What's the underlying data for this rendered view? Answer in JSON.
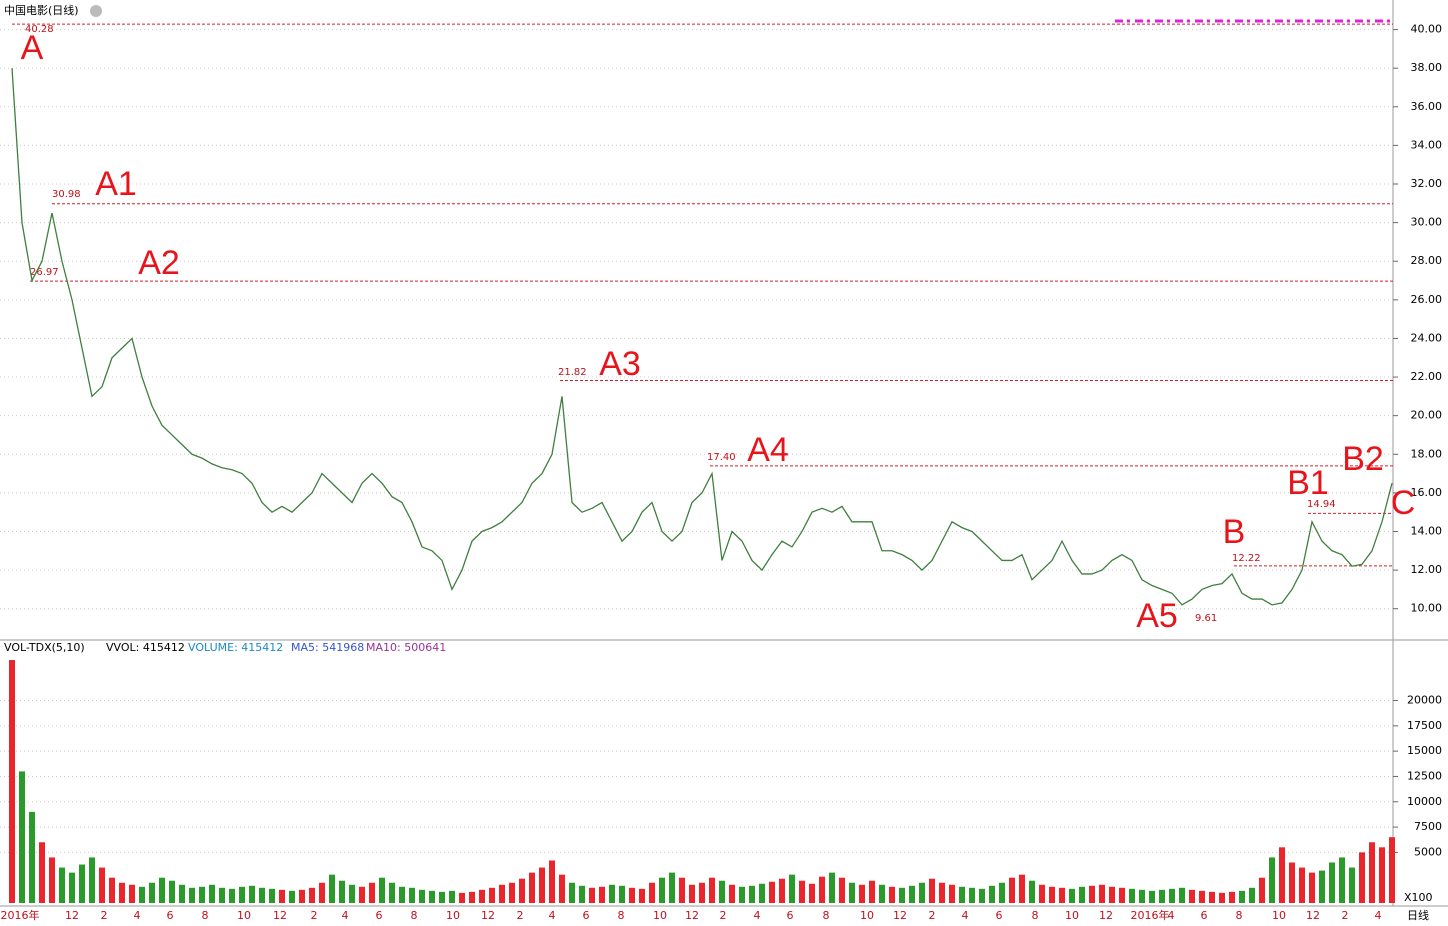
{
  "title": "中国电影(日线)",
  "chart_data": [
    {
      "type": "line",
      "name": "price",
      "values": [
        38,
        30,
        27,
        28,
        30.5,
        28,
        26,
        23.5,
        21,
        21.5,
        23,
        23.5,
        24,
        22,
        20.5,
        19.5,
        19,
        18.5,
        18,
        17.8,
        17.5,
        17.3,
        17.2,
        17,
        16.5,
        15.5,
        15,
        15.3,
        15,
        15.5,
        16,
        17,
        16.5,
        16,
        15.5,
        16.5,
        17,
        16.5,
        15.8,
        15.5,
        14.5,
        13.2,
        13,
        12.5,
        11,
        12,
        13.5,
        14,
        14.2,
        14.5,
        15,
        15.5,
        16.5,
        17,
        18,
        21,
        15.5,
        15,
        15.2,
        15.5,
        14.5,
        13.5,
        14,
        15,
        15.5,
        14,
        13.5,
        14,
        15.5,
        16,
        17,
        12.5,
        14,
        13.5,
        12.5,
        12,
        12.8,
        13.5,
        13.2,
        14,
        15,
        15.2,
        15,
        15.3,
        14.5,
        14.5,
        14.5,
        13,
        13,
        12.8,
        12.5,
        12,
        12.5,
        13.5,
        14.5,
        14.2,
        14,
        13.5,
        13,
        12.5,
        12.5,
        12.8,
        11.5,
        12,
        12.5,
        13.5,
        12.5,
        11.8,
        11.8,
        12,
        12.5,
        12.8,
        12.5,
        11.5,
        11.2,
        11,
        10.8,
        10.2,
        10.5,
        11,
        11.2,
        11.3,
        11.8,
        10.8,
        10.5,
        10.5,
        10.2,
        10.3,
        11,
        12,
        14.5,
        13.5,
        13,
        12.8,
        12.2,
        12.3,
        13,
        14.5,
        16.5
      ],
      "color": "#3f7f3f",
      "ylim": [
        9.0,
        40.6
      ],
      "yticks": [
        {
          "value": 10,
          "label": "10.00"
        },
        {
          "value": 12,
          "label": "12.00"
        },
        {
          "value": 14,
          "label": "14.00"
        },
        {
          "value": 16,
          "label": "16.00"
        },
        {
          "value": 18,
          "label": "18.00"
        },
        {
          "value": 20,
          "label": "20.00"
        },
        {
          "value": 22,
          "label": "22.00"
        },
        {
          "value": 24,
          "label": "24.00"
        },
        {
          "value": 26,
          "label": "26.00"
        },
        {
          "value": 28,
          "label": "28.00"
        },
        {
          "value": 30,
          "label": "30.00"
        },
        {
          "value": 32,
          "label": "32.00"
        },
        {
          "value": 34,
          "label": "34.00"
        },
        {
          "value": 36,
          "label": "36.00"
        },
        {
          "value": 38,
          "label": "38.00"
        },
        {
          "value": 40,
          "label": "40.00"
        }
      ],
      "grid": true,
      "levels": [
        {
          "value": 40.28,
          "label": "40.28"
        },
        {
          "value": 30.98,
          "label": "30.98"
        },
        {
          "value": 26.97,
          "label": "26.97"
        },
        {
          "value": 21.82,
          "label": "21.82"
        },
        {
          "value": 17.4,
          "label": "17.40"
        },
        {
          "value": 14.94,
          "label": "14.94"
        },
        {
          "value": 12.22,
          "label": "12.22"
        },
        {
          "value": 9.61,
          "label": "9.61"
        }
      ],
      "annotations": [
        "A",
        "A1",
        "A2",
        "A3",
        "A4",
        "A5",
        "B",
        "B1",
        "B2",
        "C"
      ]
    },
    {
      "type": "bar",
      "name": "volume",
      "header": [
        "VOL-TDX(5,10)",
        "VVOL: 415412",
        "VOLUME: 415412",
        "MA5: 541968",
        "MA10: 500641"
      ],
      "values": [
        24000,
        13000,
        9000,
        6000,
        4500,
        3500,
        3000,
        3800,
        4500,
        3500,
        2500,
        2000,
        1800,
        1600,
        2000,
        2500,
        2200,
        1800,
        1500,
        1600,
        1800,
        1500,
        1400,
        1600,
        1700,
        1500,
        1400,
        1300,
        1200,
        1300,
        1500,
        2000,
        2800,
        2200,
        1800,
        1600,
        2000,
        2500,
        2000,
        1600,
        1500,
        1300,
        1200,
        1100,
        1200,
        1000,
        1100,
        1300,
        1500,
        1800,
        2000,
        2400,
        3000,
        3500,
        4200,
        2800,
        2000,
        1700,
        1500,
        1600,
        1800,
        1700,
        1500,
        1400,
        2000,
        2500,
        3000,
        2500,
        1800,
        2000,
        2500,
        2200,
        1800,
        1600,
        1700,
        1900,
        2100,
        2400,
        2800,
        2200,
        1900,
        2600,
        3000,
        2500,
        2000,
        1800,
        2200,
        1800,
        1600,
        1500,
        1700,
        2000,
        2400,
        2000,
        1800,
        1600,
        1500,
        1400,
        1700,
        2000,
        2500,
        2800,
        2200,
        1800,
        1600,
        1500,
        1400,
        1600,
        1700,
        1800,
        1600,
        1500,
        1400,
        1300,
        1200,
        1300,
        1400,
        1500,
        1300,
        1200,
        1100,
        1000,
        1100,
        1200,
        1500,
        2500,
        4500,
        5500,
        4000,
        3500,
        3000,
        3200,
        4000,
        4500,
        3500,
        5000,
        6000,
        5500,
        6500
      ],
      "up_color": "#e8262b",
      "down_color": "#2a9a2a",
      "ylim": [
        0,
        24300
      ],
      "yticks": [
        5000,
        7500,
        10000,
        12500,
        15000,
        17500,
        20000
      ],
      "unit": "X100"
    }
  ],
  "x_labels": [
    "2016年",
    "12",
    "2",
    "4",
    "6",
    "8",
    "10",
    "12",
    "2",
    "4",
    "6",
    "8",
    "10",
    "12",
    "2",
    "4",
    "6",
    "8",
    "10",
    "12",
    "2",
    "4",
    "6",
    "8",
    "10",
    "12",
    "2",
    "4",
    "6",
    "8",
    "10",
    "12",
    "2016年",
    "4",
    "6",
    "8",
    "10",
    "12",
    "2",
    "4"
  ],
  "period": "日线"
}
